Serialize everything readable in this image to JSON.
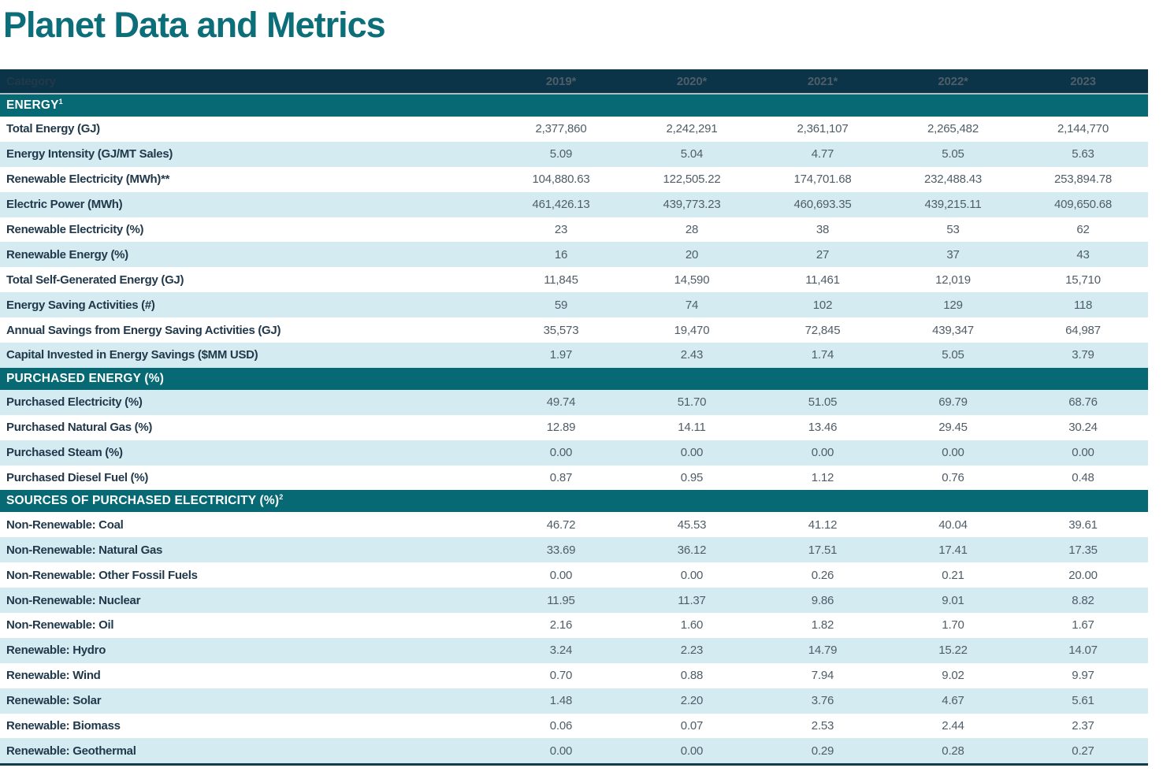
{
  "page": {
    "title": "Planet Data and Metrics"
  },
  "colors": {
    "title_teal": "#0C6E78",
    "header_navy": "#0B3448",
    "section_teal": "#066973",
    "stripe_light_blue": "#D4ECF1",
    "label_navy": "#21394B",
    "value_gray": "#4F5D68",
    "bottom_border_navy": "#13394E"
  },
  "table": {
    "header": {
      "category": "Category",
      "years": [
        "2019*",
        "2020*",
        "2021*",
        "2022*",
        "2023"
      ]
    },
    "sections": [
      {
        "title": "ENERGY",
        "superscript": "1",
        "rows": [
          {
            "label": "Total Energy (GJ)",
            "values": [
              "2,377,860",
              "2,242,291",
              "2,361,107",
              "2,265,482",
              "2,144,770"
            ]
          },
          {
            "label": "Energy Intensity (GJ/MT Sales)",
            "values": [
              "5.09",
              "5.04",
              "4.77",
              "5.05",
              "5.63"
            ]
          },
          {
            "label": "Renewable Electricity (MWh)**",
            "values": [
              "104,880.63",
              "122,505.22",
              "174,701.68",
              "232,488.43",
              "253,894.78"
            ]
          },
          {
            "label": "Electric Power (MWh)",
            "values": [
              "461,426.13",
              "439,773.23",
              "460,693.35",
              "439,215.11",
              "409,650.68"
            ]
          },
          {
            "label": "Renewable Electricity (%)",
            "values": [
              "23",
              "28",
              "38",
              "53",
              "62"
            ]
          },
          {
            "label": "Renewable Energy (%)",
            "values": [
              "16",
              "20",
              "27",
              "37",
              "43"
            ]
          },
          {
            "label": "Total Self-Generated Energy (GJ)",
            "values": [
              "11,845",
              "14,590",
              "11,461",
              "12,019",
              "15,710"
            ]
          },
          {
            "label": "Energy Saving Activities (#)",
            "values": [
              "59",
              "74",
              "102",
              "129",
              "118"
            ]
          },
          {
            "label": "Annual Savings from Energy Saving Activities (GJ)",
            "values": [
              "35,573",
              "19,470",
              "72,845",
              "439,347",
              "64,987"
            ]
          },
          {
            "label": "Capital Invested in Energy Savings ($MM USD)",
            "values": [
              "1.97",
              "2.43",
              "1.74",
              "5.05",
              "3.79"
            ]
          }
        ]
      },
      {
        "title": "PURCHASED ENERGY (%)",
        "superscript": "",
        "rows": [
          {
            "label": "Purchased Electricity (%)",
            "values": [
              "49.74",
              "51.70",
              "51.05",
              "69.79",
              "68.76"
            ]
          },
          {
            "label": "Purchased Natural Gas (%)",
            "values": [
              "12.89",
              "14.11",
              "13.46",
              "29.45",
              "30.24"
            ]
          },
          {
            "label": "Purchased Steam (%)",
            "values": [
              "0.00",
              "0.00",
              "0.00",
              "0.00",
              "0.00"
            ]
          },
          {
            "label": "Purchased Diesel Fuel (%)",
            "values": [
              "0.87",
              "0.95",
              "1.12",
              "0.76",
              "0.48"
            ]
          }
        ]
      },
      {
        "title": "SOURCES OF PURCHASED ELECTRICITY (%)",
        "superscript": "2",
        "rows": [
          {
            "label": "Non-Renewable: Coal",
            "values": [
              "46.72",
              "45.53",
              "41.12",
              "40.04",
              "39.61"
            ]
          },
          {
            "label": "Non-Renewable: Natural Gas",
            "values": [
              "33.69",
              "36.12",
              "17.51",
              "17.41",
              "17.35"
            ]
          },
          {
            "label": "Non-Renewable: Other Fossil Fuels",
            "values": [
              "0.00",
              "0.00",
              "0.26",
              "0.21",
              "20.00"
            ]
          },
          {
            "label": "Non-Renewable: Nuclear",
            "values": [
              "11.95",
              "11.37",
              "9.86",
              "9.01",
              "8.82"
            ]
          },
          {
            "label": "Non-Renewable: Oil",
            "values": [
              "2.16",
              "1.60",
              "1.82",
              "1.70",
              "1.67"
            ]
          },
          {
            "label": "Renewable: Hydro",
            "values": [
              "3.24",
              "2.23",
              "14.79",
              "15.22",
              "14.07"
            ]
          },
          {
            "label": "Renewable: Wind",
            "values": [
              "0.70",
              "0.88",
              "7.94",
              "9.02",
              "9.97"
            ]
          },
          {
            "label": "Renewable: Solar",
            "values": [
              "1.48",
              "2.20",
              "3.76",
              "4.67",
              "5.61"
            ]
          },
          {
            "label": "Renewable: Biomass",
            "values": [
              "0.06",
              "0.07",
              "2.53",
              "2.44",
              "2.37"
            ]
          },
          {
            "label": "Renewable: Geothermal",
            "values": [
              "0.00",
              "0.00",
              "0.29",
              "0.28",
              "0.27"
            ]
          }
        ]
      }
    ]
  }
}
